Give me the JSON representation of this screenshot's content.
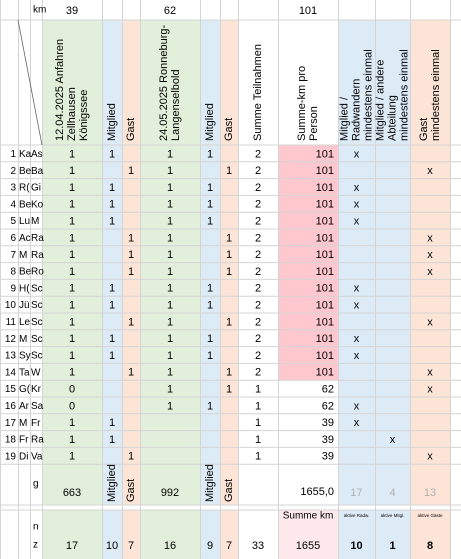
{
  "top": {
    "label": "km",
    "values": [
      39,
      null,
      null,
      62,
      null,
      null,
      null,
      101,
      null,
      null,
      null
    ]
  },
  "headers": {
    "columns": [
      [
        "12.04.2025 Anfahren",
        "Zellhausen",
        "Königssee"
      ],
      [
        "Mitglied"
      ],
      [
        "Gast"
      ],
      [
        "24.05.2025 Ronneburg-",
        "Langenselbold"
      ],
      [
        "Mitglied"
      ],
      [
        "Gast"
      ],
      [
        "Summe Teilnahmen"
      ],
      [
        "Summe-km pro",
        "Person"
      ],
      [
        "Mitglied /",
        "Radwandern",
        "mindestens einmal"
      ],
      [
        "Mitglied / andere",
        "Abteilung",
        "mindestens einmal"
      ],
      [
        "Gast",
        "mindestens einmal"
      ]
    ]
  },
  "rows": [
    {
      "num": 1,
      "name1": "Ka",
      "name2": "As",
      "cells": [
        1,
        1,
        null,
        1,
        1,
        null,
        2,
        101,
        "x",
        null,
        null
      ]
    },
    {
      "num": 2,
      "name1": "Be",
      "name2": "Ba",
      "cells": [
        1,
        null,
        1,
        1,
        null,
        1,
        2,
        101,
        null,
        null,
        "x"
      ]
    },
    {
      "num": 3,
      "name1": "R(",
      "name2": "Gi",
      "cells": [
        1,
        1,
        null,
        1,
        1,
        null,
        2,
        101,
        "x",
        null,
        null
      ]
    },
    {
      "num": 4,
      "name1": "Be",
      "name2": "Ko",
      "cells": [
        1,
        1,
        null,
        1,
        1,
        null,
        2,
        101,
        "x",
        null,
        null
      ]
    },
    {
      "num": 5,
      "name1": "Lu",
      "name2": "M",
      "cells": [
        1,
        1,
        null,
        1,
        1,
        null,
        2,
        101,
        "x",
        null,
        null
      ]
    },
    {
      "num": 6,
      "name1": "Ac",
      "name2": "Ra",
      "cells": [
        1,
        null,
        1,
        1,
        null,
        1,
        2,
        101,
        null,
        null,
        "x"
      ]
    },
    {
      "num": 7,
      "name1": "M",
      "name2": "Ra",
      "cells": [
        1,
        null,
        1,
        1,
        null,
        1,
        2,
        101,
        null,
        null,
        "x"
      ]
    },
    {
      "num": 8,
      "name1": "Be",
      "name2": "Ro",
      "cells": [
        1,
        null,
        1,
        1,
        null,
        1,
        2,
        101,
        null,
        null,
        "x"
      ]
    },
    {
      "num": 9,
      "name1": "H(",
      "name2": "Sc",
      "cells": [
        1,
        1,
        null,
        1,
        1,
        null,
        2,
        101,
        "x",
        null,
        null
      ]
    },
    {
      "num": 10,
      "name1": "Jü",
      "name2": "Sc",
      "cells": [
        1,
        1,
        null,
        1,
        1,
        null,
        2,
        101,
        "x",
        null,
        null
      ]
    },
    {
      "num": 11,
      "name1": "Le",
      "name2": "Sc",
      "cells": [
        1,
        null,
        1,
        1,
        null,
        1,
        2,
        101,
        null,
        null,
        "x"
      ]
    },
    {
      "num": 12,
      "name1": "M",
      "name2": "Sc",
      "cells": [
        1,
        1,
        null,
        1,
        1,
        null,
        2,
        101,
        "x",
        null,
        null
      ]
    },
    {
      "num": 13,
      "name1": "Sy",
      "name2": "Sc",
      "cells": [
        1,
        1,
        null,
        1,
        1,
        null,
        2,
        101,
        "x",
        null,
        null
      ]
    },
    {
      "num": 14,
      "name1": "Ta",
      "name2": "W",
      "cells": [
        1,
        null,
        1,
        1,
        null,
        1,
        2,
        101,
        null,
        null,
        "x"
      ]
    },
    {
      "num": 15,
      "name1": "G(",
      "name2": "Kr",
      "cells": [
        0,
        null,
        null,
        1,
        null,
        1,
        1,
        62,
        null,
        null,
        "x"
      ]
    },
    {
      "num": 16,
      "name1": "Ar",
      "name2": "Sa",
      "cells": [
        0,
        null,
        null,
        1,
        1,
        null,
        1,
        62,
        "x",
        null,
        null
      ]
    },
    {
      "num": 17,
      "name1": "M",
      "name2": "Fr",
      "cells": [
        1,
        1,
        null,
        null,
        null,
        null,
        1,
        39,
        "x",
        null,
        null
      ]
    },
    {
      "num": 18,
      "name1": "Fr",
      "name2": "Ra",
      "cells": [
        1,
        1,
        null,
        null,
        null,
        null,
        1,
        39,
        null,
        "x",
        null
      ]
    },
    {
      "num": 19,
      "name1": "Di",
      "name2": "Va",
      "cells": [
        1,
        null,
        1,
        null,
        null,
        null,
        1,
        39,
        null,
        null,
        "x"
      ]
    }
  ],
  "summary": {
    "label": "g",
    "values": [
      663,
      "Mitglied",
      "Gast",
      992,
      "Mitglied",
      "Gast",
      null,
      "1655,0",
      17,
      4,
      13
    ]
  },
  "footer": {
    "label": [
      "n",
      "z"
    ],
    "captions": [
      null,
      null,
      null,
      null,
      null,
      null,
      null,
      "Summe km",
      "aktive Radw.",
      "aktive Mitgl.",
      "aktive Gäste"
    ],
    "values": [
      17,
      10,
      7,
      16,
      9,
      7,
      33,
      1655,
      10,
      1,
      8
    ]
  }
}
